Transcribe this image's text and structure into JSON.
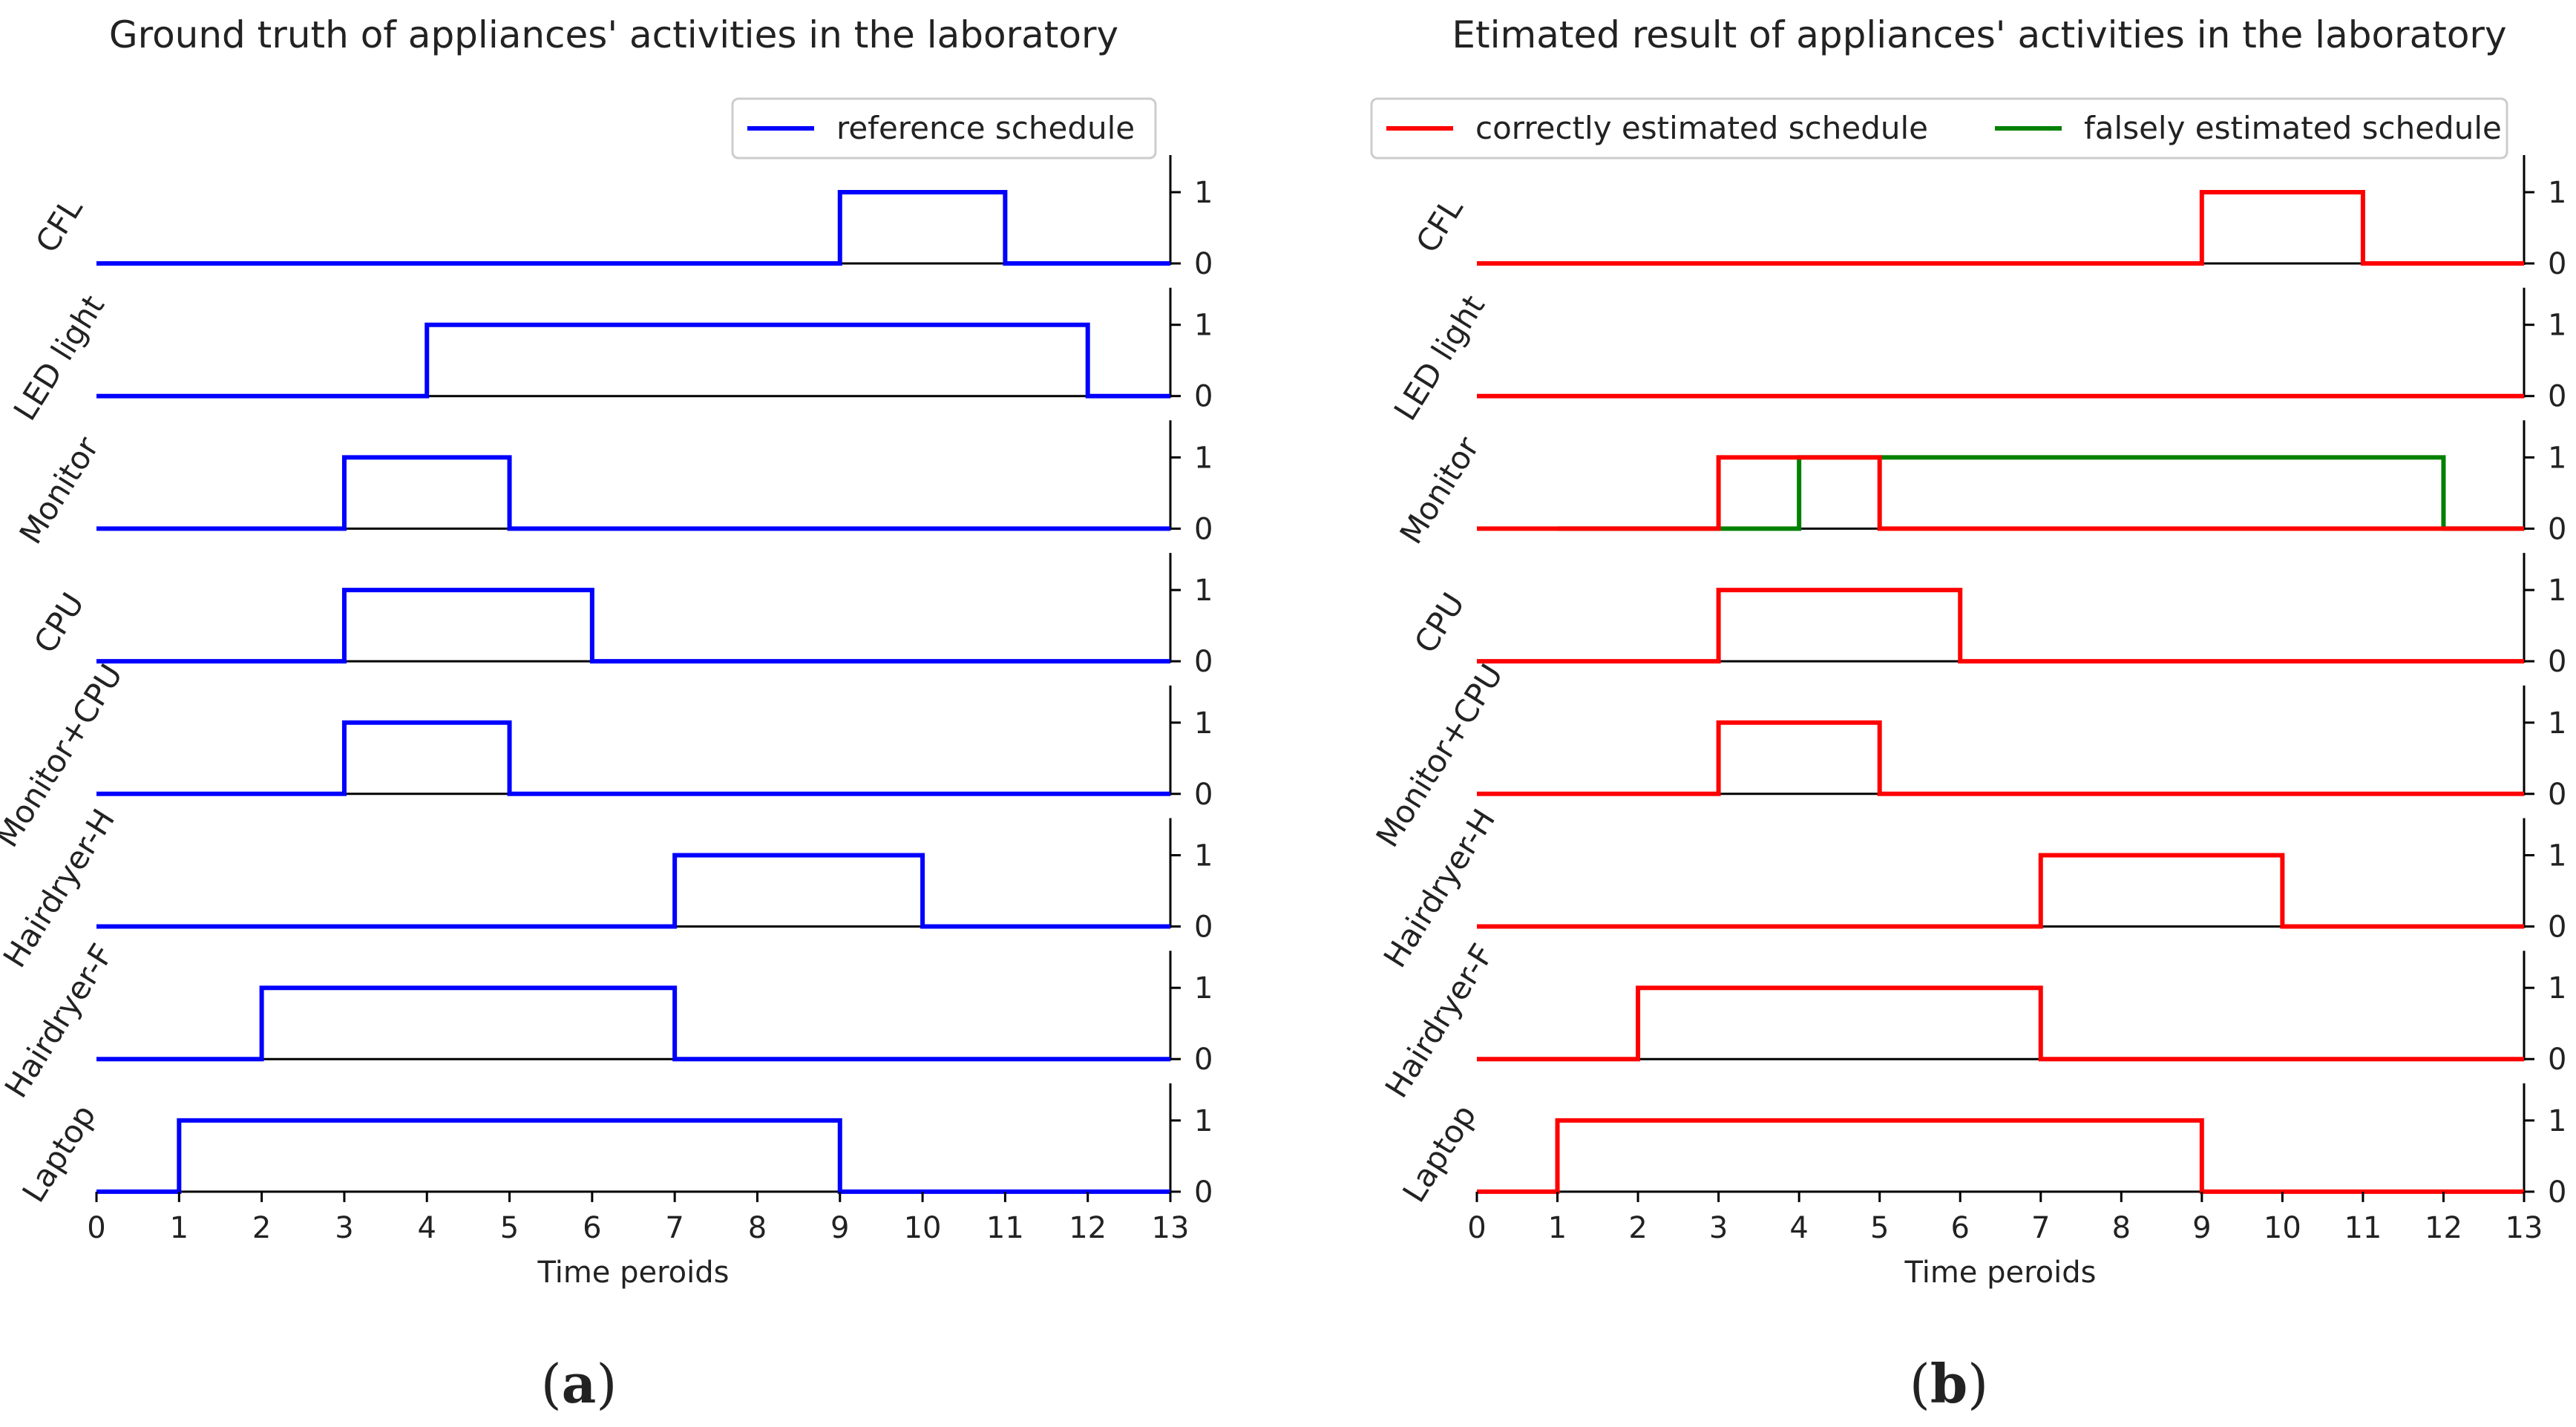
{
  "chart_data": [
    {
      "type": "line",
      "step": "post",
      "panel_label": "a",
      "title": "Ground truth of appliances' activities in the laboratory",
      "xlabel": "Time peroids",
      "xlim": [
        0,
        13
      ],
      "xticks": [
        0,
        1,
        2,
        3,
        4,
        5,
        6,
        7,
        8,
        9,
        10,
        11,
        12,
        13
      ],
      "ylim": [
        0,
        1
      ],
      "yticks": [
        0,
        1
      ],
      "legend": {
        "position": "top-right",
        "entries": [
          {
            "label": "reference schedule",
            "color": "#0000ff"
          }
        ]
      },
      "subplots": [
        {
          "label": "CFL",
          "series": [
            {
              "style": "reference",
              "color": "#0000ff",
              "x": [
                0,
                9,
                11,
                13
              ],
              "y": [
                0,
                1,
                0,
                0
              ]
            }
          ]
        },
        {
          "label": "LED light",
          "series": [
            {
              "style": "reference",
              "color": "#0000ff",
              "x": [
                0,
                4,
                12,
                13
              ],
              "y": [
                0,
                1,
                0,
                0
              ]
            }
          ]
        },
        {
          "label": "Monitor",
          "series": [
            {
              "style": "reference",
              "color": "#0000ff",
              "x": [
                0,
                3,
                5,
                13
              ],
              "y": [
                0,
                1,
                0,
                0
              ]
            }
          ]
        },
        {
          "label": "CPU",
          "series": [
            {
              "style": "reference",
              "color": "#0000ff",
              "x": [
                0,
                3,
                6,
                13
              ],
              "y": [
                0,
                1,
                0,
                0
              ]
            }
          ]
        },
        {
          "label": "Monitor+CPU",
          "series": [
            {
              "style": "reference",
              "color": "#0000ff",
              "x": [
                0,
                3,
                5,
                13
              ],
              "y": [
                0,
                1,
                0,
                0
              ]
            }
          ]
        },
        {
          "label": "Hairdryer-H",
          "series": [
            {
              "style": "reference",
              "color": "#0000ff",
              "x": [
                0,
                7,
                10,
                13
              ],
              "y": [
                0,
                1,
                0,
                0
              ]
            }
          ]
        },
        {
          "label": "Hairdryer-F",
          "series": [
            {
              "style": "reference",
              "color": "#0000ff",
              "x": [
                0,
                2,
                7,
                13
              ],
              "y": [
                0,
                1,
                0,
                0
              ]
            }
          ]
        },
        {
          "label": "Laptop",
          "series": [
            {
              "style": "reference",
              "color": "#0000ff",
              "x": [
                0,
                1,
                9,
                13
              ],
              "y": [
                0,
                1,
                0,
                0
              ]
            }
          ]
        }
      ]
    },
    {
      "type": "line",
      "step": "post",
      "panel_label": "b",
      "title": "Etimated result of appliances' activities in the laboratory",
      "xlabel": "Time peroids",
      "xlim": [
        0,
        13
      ],
      "xticks": [
        0,
        1,
        2,
        3,
        4,
        5,
        6,
        7,
        8,
        9,
        10,
        11,
        12,
        13
      ],
      "ylim": [
        0,
        1
      ],
      "yticks": [
        0,
        1
      ],
      "legend": {
        "position": "top",
        "entries": [
          {
            "label": "correctly estimated schedule",
            "color": "#ff0000"
          },
          {
            "label": "falsely estimated schedule",
            "color": "#008000"
          }
        ]
      },
      "subplots": [
        {
          "label": "CFL",
          "series": [
            {
              "style": "correct",
              "color": "#ff0000",
              "x": [
                0,
                9,
                11,
                13
              ],
              "y": [
                0,
                1,
                0,
                0
              ]
            }
          ]
        },
        {
          "label": "LED light",
          "series": [
            {
              "style": "correct",
              "color": "#ff0000",
              "x": [
                0,
                13
              ],
              "y": [
                0,
                0
              ]
            }
          ]
        },
        {
          "label": "Monitor",
          "series": [
            {
              "style": "false",
              "color": "#008000",
              "x": [
                1,
                4,
                12,
                13
              ],
              "y": [
                0,
                1,
                0,
                0
              ]
            },
            {
              "style": "correct",
              "color": "#ff0000",
              "x": [
                0,
                3,
                5,
                13
              ],
              "y": [
                0,
                1,
                0,
                0
              ]
            }
          ]
        },
        {
          "label": "CPU",
          "series": [
            {
              "style": "correct",
              "color": "#ff0000",
              "x": [
                0,
                3,
                6,
                13
              ],
              "y": [
                0,
                1,
                0,
                0
              ]
            }
          ]
        },
        {
          "label": "Monitor+CPU",
          "series": [
            {
              "style": "correct",
              "color": "#ff0000",
              "x": [
                0,
                3,
                5,
                13
              ],
              "y": [
                0,
                1,
                0,
                0
              ]
            }
          ]
        },
        {
          "label": "Hairdryer-H",
          "series": [
            {
              "style": "correct",
              "color": "#ff0000",
              "x": [
                0,
                7,
                10,
                13
              ],
              "y": [
                0,
                1,
                0,
                0
              ]
            }
          ]
        },
        {
          "label": "Hairdryer-F",
          "series": [
            {
              "style": "correct",
              "color": "#ff0000",
              "x": [
                0,
                2,
                7,
                13
              ],
              "y": [
                0,
                1,
                0,
                0
              ]
            }
          ]
        },
        {
          "label": "Laptop",
          "series": [
            {
              "style": "correct",
              "color": "#ff0000",
              "x": [
                0,
                1,
                9,
                13
              ],
              "y": [
                0,
                1,
                0,
                0
              ]
            }
          ]
        }
      ]
    }
  ]
}
